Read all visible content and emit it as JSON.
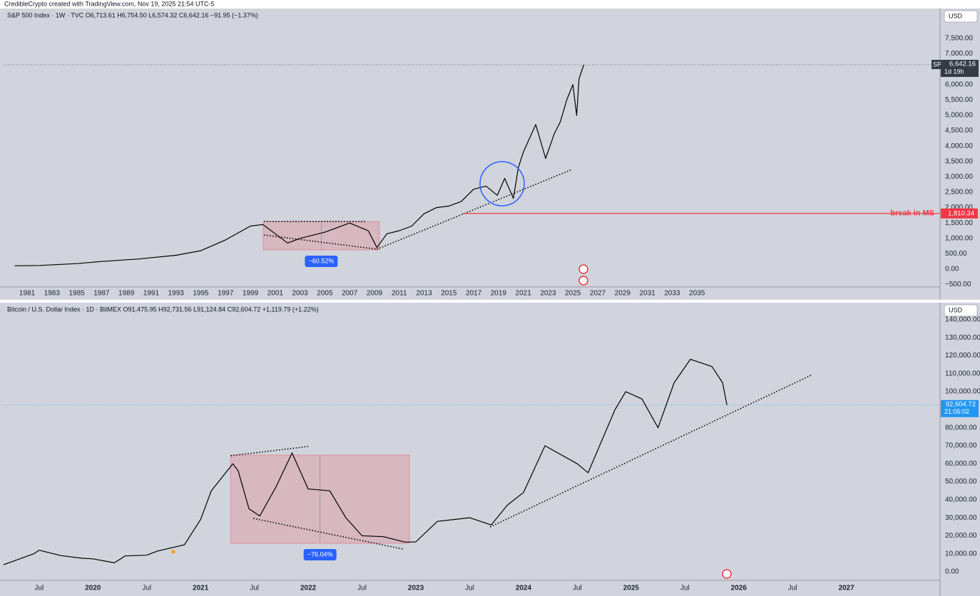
{
  "header": "CredibleCrypto created with TradingView.com, Nov 19, 2025 21:54 UTC-5",
  "chart_data": [
    {
      "type": "line",
      "title": "S&P 500 Index · 1W · TVC  O6,713.61  H6,754.50  L6,574.32  C6,642.16  −91.95 (−1.37%)",
      "currency": "USD",
      "color": "#000000",
      "x": [
        1980,
        1982,
        1985,
        1987,
        1990,
        1993,
        1995,
        1997,
        1999,
        2000,
        2001,
        2002,
        2003,
        2005,
        2007,
        2008.5,
        2009.2,
        2010,
        2011,
        2012,
        2013,
        2014,
        2015,
        2016,
        2017,
        2018,
        2018.9,
        2019.5,
        2020.2,
        2020.6,
        2021,
        2022,
        2022.8,
        2023.5,
        2024,
        2024.5,
        2025,
        2025.3,
        2025.5,
        2025.88
      ],
      "values": [
        108,
        120,
        180,
        250,
        330,
        450,
        600,
        950,
        1400,
        1450,
        1150,
        850,
        1000,
        1200,
        1500,
        1250,
        700,
        1150,
        1250,
        1400,
        1800,
        2000,
        2050,
        2200,
        2600,
        2700,
        2400,
        2950,
        2300,
        3300,
        3800,
        4700,
        3600,
        4400,
        4800,
        5500,
        6000,
        5000,
        6200,
        6642.16
      ],
      "xlim": [
        1979.1,
        2054.6
      ],
      "xticks": [
        1981,
        1983,
        1985,
        1987,
        1989,
        1991,
        1993,
        1995,
        1997,
        1999,
        2001,
        2003,
        2005,
        2007,
        2009,
        2011,
        2013,
        2015,
        2017,
        2019,
        2021,
        2023,
        2025,
        2027,
        2029,
        2031,
        2033,
        2035
      ],
      "ylim": [
        -579,
        8472
      ],
      "yticks": [
        {
          "value": -500,
          "label": "−500.00"
        },
        {
          "value": 0,
          "label": "0.00"
        },
        {
          "value": 500,
          "label": "500.00"
        },
        {
          "value": 1000,
          "label": "1,000.00"
        },
        {
          "value": 1500,
          "label": "1,500.00"
        },
        {
          "value": 2000,
          "label": "2,000.00"
        },
        {
          "value": 2500,
          "label": "2,500.00"
        },
        {
          "value": 3000,
          "label": "3,000.00"
        },
        {
          "value": 3500,
          "label": "3,500.00"
        },
        {
          "value": 4000,
          "label": "4,000.00"
        },
        {
          "value": 4500,
          "label": "4,500.00"
        },
        {
          "value": 5000,
          "label": "5,000.00"
        },
        {
          "value": 5500,
          "label": "5,500.00"
        },
        {
          "value": 6000,
          "label": "6,000.00"
        },
        {
          "value": 6500,
          "label": "6,500.00"
        },
        {
          "value": 7000,
          "label": "7,000.00"
        },
        {
          "value": 7500,
          "label": "7,500.00"
        }
      ],
      "grid": false,
      "last": {
        "value": 6642.16,
        "label": "6,642.16",
        "symbol": "SPX",
        "countdown": "1d 19h",
        "color": "#363a45"
      },
      "level": {
        "value": 1810.34,
        "label": "1,810.34",
        "text": "break in MS",
        "x_start": 2016.1,
        "color": "#f23645"
      },
      "trendlines": [
        {
          "x": [
            2009.2,
            2024.93
          ],
          "y": [
            648,
            3240
          ]
        },
        {
          "x": [
            2000.1,
            2008.3
          ],
          "y": [
            1550,
            1550
          ]
        },
        {
          "x": [
            2000.1,
            2009.2
          ],
          "y": [
            1110,
            650
          ]
        }
      ],
      "ranges": [
        {
          "x": [
            2000.03,
            2009.4
          ],
          "y": [
            625,
            1550
          ],
          "label": "−60.52%"
        }
      ]
    },
    {
      "type": "line",
      "title": "Bitcoin / U.S. Dollar Index · 1D · BitMEX  O91,475.95  H92,731.56  L91,124.84  C92,604.72  +1,119.79 (+1.22%)",
      "currency": "USD",
      "color": "#000000",
      "x": [
        2019.17,
        2019.45,
        2019.5,
        2019.7,
        2019.9,
        2020.0,
        2020.2,
        2020.3,
        2020.5,
        2020.6,
        2020.85,
        2021.0,
        2021.1,
        2021.3,
        2021.35,
        2021.45,
        2021.55,
        2021.7,
        2021.85,
        2022.0,
        2022.2,
        2022.35,
        2022.5,
        2022.7,
        2022.9,
        2023.0,
        2023.2,
        2023.5,
        2023.7,
        2023.85,
        2024.0,
        2024.2,
        2024.5,
        2024.6,
        2024.85,
        2024.95,
        2025.1,
        2025.25,
        2025.4,
        2025.55,
        2025.75,
        2025.85,
        2025.89
      ],
      "values": [
        3900,
        10000,
        12000,
        9000,
        7500,
        7200,
        5000,
        8800,
        9200,
        11500,
        15000,
        29000,
        45000,
        60000,
        56000,
        35000,
        31000,
        47000,
        66000,
        46000,
        45000,
        30000,
        20000,
        19500,
        16500,
        16600,
        28000,
        30000,
        26000,
        37000,
        44000,
        70000,
        60000,
        55000,
        90000,
        100000,
        96000,
        80000,
        105000,
        118000,
        114000,
        105000,
        92604.72
      ],
      "xlim": [
        2019.17,
        2027.87
      ],
      "xticks": [
        {
          "value": 2019.5,
          "label": "Jul"
        },
        2020,
        {
          "value": 2020.5,
          "label": "Jul"
        },
        2021,
        {
          "value": 2021.5,
          "label": "Jul"
        },
        2022,
        {
          "value": 2022.5,
          "label": "Jul"
        },
        2023,
        {
          "value": 2023.5,
          "label": "Jul"
        },
        2024,
        {
          "value": 2024.5,
          "label": "Jul"
        },
        2025,
        {
          "value": 2025.5,
          "label": "Jul"
        },
        2026,
        {
          "value": 2026.5,
          "label": "Jul"
        },
        2027
      ],
      "ylim": [
        -4745,
        149470
      ],
      "yticks": [
        {
          "value": 0,
          "label": "0.00"
        },
        {
          "value": 10000,
          "label": "10,000.00"
        },
        {
          "value": 20000,
          "label": "20,000.00"
        },
        {
          "value": 30000,
          "label": "30,000.00"
        },
        {
          "value": 40000,
          "label": "40,000.00"
        },
        {
          "value": 50000,
          "label": "50,000.00"
        },
        {
          "value": 60000,
          "label": "60,000.00"
        },
        {
          "value": 70000,
          "label": "70,000.00"
        },
        {
          "value": 80000,
          "label": "80,000.00"
        },
        {
          "value": 90000,
          "label": "90,000.00"
        },
        {
          "value": 100000,
          "label": "100,000.00"
        },
        {
          "value": 110000,
          "label": "110,000.00"
        },
        {
          "value": 120000,
          "label": "120,000.00"
        },
        {
          "value": 130000,
          "label": "130,000.00"
        },
        {
          "value": 140000,
          "label": "140,000.00"
        }
      ],
      "grid": false,
      "last": {
        "value": 92604.72,
        "label": "92,604.72",
        "countdown": "21:05:02",
        "color": "#2196f3"
      },
      "trendlines": [
        {
          "x": [
            2023.69,
            2026.67
          ],
          "y": [
            24900,
            109100
          ]
        },
        {
          "x": [
            2021.28,
            2022.0
          ],
          "y": [
            64450,
            69600
          ]
        },
        {
          "x": [
            2021.49,
            2022.88
          ],
          "y": [
            29650,
            12650
          ]
        }
      ],
      "ranges": [
        {
          "x": [
            2021.28,
            2022.94
          ],
          "y": [
            15800,
            64850
          ],
          "label": "−76.04%"
        }
      ]
    }
  ]
}
